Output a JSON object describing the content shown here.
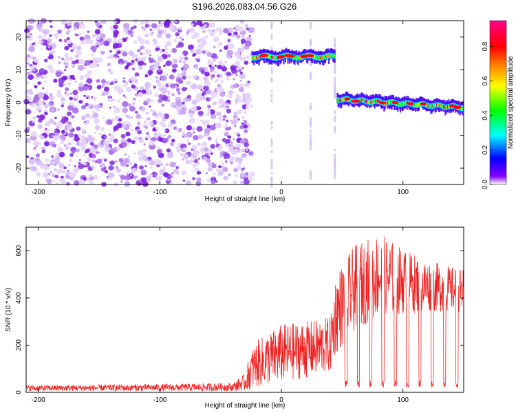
{
  "title": "S196.2026.083.04.56.G26",
  "chart_data": [
    {
      "type": "heatmap",
      "xlabel": "Height of straight line (km)",
      "ylabel": "Frequency (Hz)",
      "xlim": [
        -210,
        150
      ],
      "ylim": [
        -25,
        25
      ],
      "x_ticks": [
        -200,
        -100,
        0,
        100
      ],
      "y_ticks": [
        -20,
        -10,
        0,
        10,
        20
      ],
      "colorbar": {
        "label": "Normalized spectral amplitude",
        "range": [
          0,
          0.95
        ],
        "ticks": [
          0.0,
          0.2,
          0.4,
          0.6,
          0.8
        ],
        "tick_labels": [
          "0.0",
          "0.2",
          "0.4",
          "0.6",
          "0.8"
        ],
        "colors": [
          "#ffffff",
          "#8800ff",
          "#0000ff",
          "#00ffff",
          "#00ff00",
          "#ffff00",
          "#ff8800",
          "#ff0000",
          "#ff0088"
        ]
      },
      "regions": [
        {
          "name": "noise",
          "x_range": [
            -210,
            -24
          ],
          "freq_range": [
            -25,
            25
          ],
          "amplitude": 0.05
        },
        {
          "name": "upper trace",
          "x_range": [
            -24,
            44
          ],
          "freq": 14,
          "amplitude": 0.9
        },
        {
          "name": "lower trace",
          "x_range": [
            46,
            150
          ],
          "freq_start": 1,
          "freq_end": -1.5,
          "amplitude": 0.85
        }
      ],
      "vertical_streaks": [
        -8,
        24,
        44
      ]
    },
    {
      "type": "line",
      "xlabel": "Height of straight line (km)",
      "ylabel": "SNR (10 * v/v)",
      "xlim": [
        -210,
        150
      ],
      "ylim": [
        0,
        700
      ],
      "x_ticks": [
        -200,
        -100,
        0,
        100
      ],
      "y_ticks": [
        0,
        200,
        400,
        600
      ],
      "color": "#ee2222",
      "envelope": {
        "x": [
          -210,
          -100,
          -40,
          -30,
          -25,
          -20,
          0,
          20,
          40,
          45,
          60,
          80,
          100,
          120,
          150
        ],
        "low": [
          5,
          5,
          5,
          5,
          10,
          20,
          40,
          60,
          80,
          160,
          260,
          320,
          330,
          340,
          340
        ],
        "high": [
          30,
          35,
          40,
          80,
          180,
          220,
          290,
          300,
          320,
          510,
          620,
          680,
          610,
          560,
          520
        ]
      }
    }
  ]
}
